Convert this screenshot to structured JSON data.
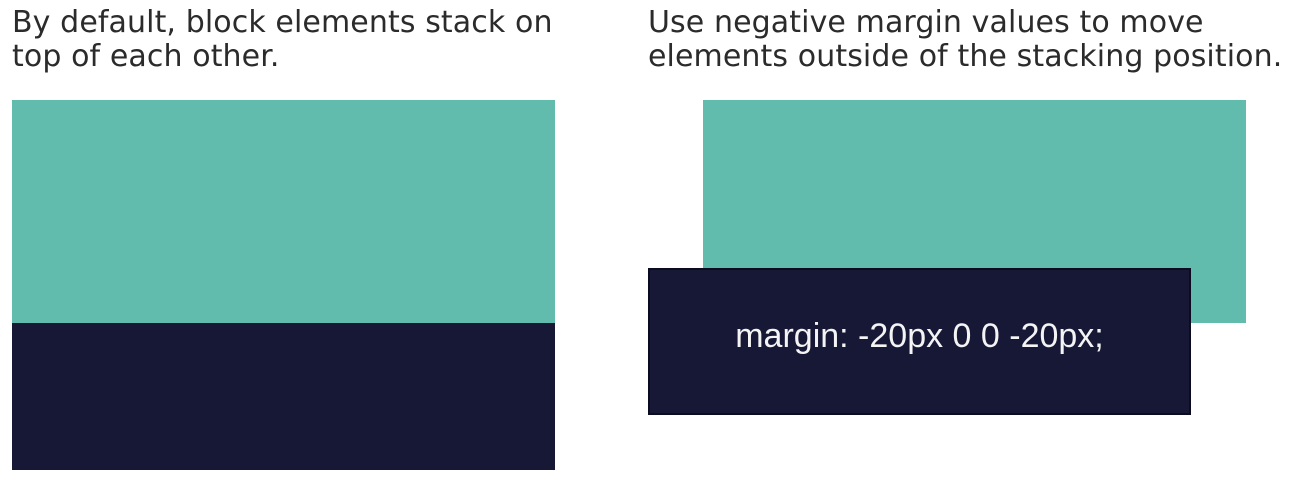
{
  "left_panel": {
    "caption_line1": "By default, block elements stack on",
    "caption_line2": "top of each other."
  },
  "right_panel": {
    "caption_line1": "Use negative margin values to move",
    "caption_line2": "elements outside of the stacking position.",
    "code_label": "margin: -20px 0 0 -20px;"
  },
  "colors": {
    "teal": "#62bcad",
    "navy": "#171836"
  }
}
